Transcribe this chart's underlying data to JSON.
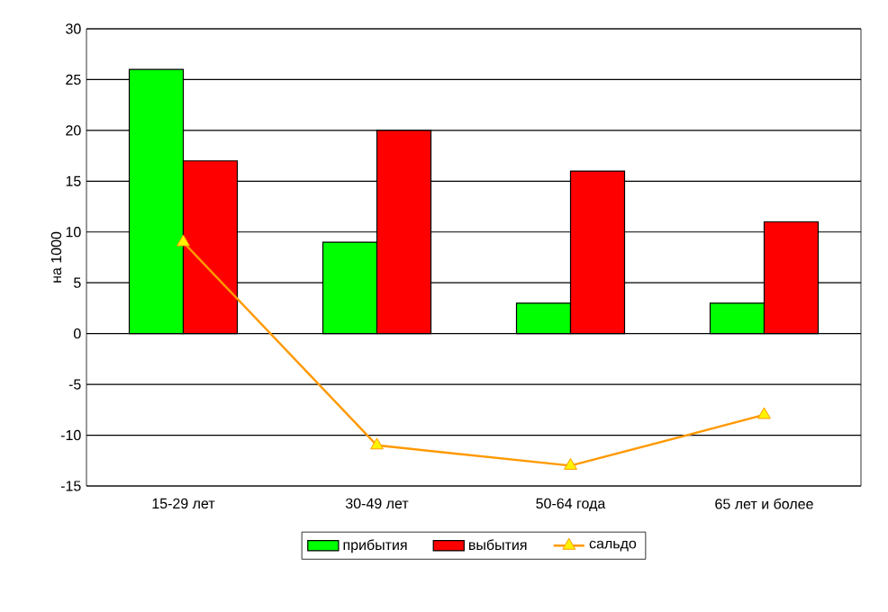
{
  "chart_data": {
    "type": "bar",
    "ylabel": "на 1000",
    "categories": [
      "15-29 лет",
      "30-49 лет",
      "50-64 года",
      "65 лет и более"
    ],
    "series": [
      {
        "name": "прибытия",
        "color": "#00ff00",
        "values": [
          26,
          9,
          3,
          3
        ]
      },
      {
        "name": "выбытия",
        "color": "#ff0000",
        "values": [
          17,
          20,
          16,
          11
        ]
      },
      {
        "name": "сальдо",
        "color": "#ff9900",
        "type": "line",
        "marker": "triangle",
        "values": [
          9,
          -11,
          -13,
          -8
        ]
      }
    ],
    "ylim": [
      -15,
      30
    ],
    "yticks": [
      -15,
      -10,
      -5,
      0,
      5,
      10,
      15,
      20,
      25,
      30
    ],
    "grid": "y",
    "legend": "bottom"
  }
}
